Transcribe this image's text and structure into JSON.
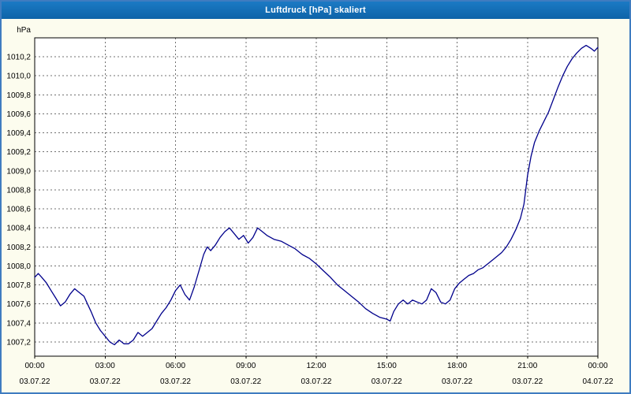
{
  "window": {
    "title": "Luftdruck [hPa] skaliert",
    "colors": {
      "titlebar": "#116bb2",
      "titlebar_text": "#ffffff",
      "background": "#fcfcee",
      "border": "#3f7cc0",
      "plot_background": "#ffffff",
      "grid": "#707070",
      "axis": "#000000",
      "line": "#00008b"
    }
  },
  "chart_data": {
    "type": "line",
    "title": "Luftdruck [hPa] skaliert",
    "unit_label": "hPa",
    "xlabel": "",
    "ylabel": "hPa",
    "xlim": [
      0,
      24
    ],
    "ylim": [
      1007.05,
      1010.4
    ],
    "grid": "dashed",
    "legend": "none",
    "y_ticks": [
      {
        "value": 1007.2,
        "label": "1007,2"
      },
      {
        "value": 1007.4,
        "label": "1007,4"
      },
      {
        "value": 1007.6,
        "label": "1007,6"
      },
      {
        "value": 1007.8,
        "label": "1007,8"
      },
      {
        "value": 1008.0,
        "label": "1008,0"
      },
      {
        "value": 1008.2,
        "label": "1008,2"
      },
      {
        "value": 1008.4,
        "label": "1008,4"
      },
      {
        "value": 1008.6,
        "label": "1008,6"
      },
      {
        "value": 1008.8,
        "label": "1008,8"
      },
      {
        "value": 1009.0,
        "label": "1009,0"
      },
      {
        "value": 1009.2,
        "label": "1009,2"
      },
      {
        "value": 1009.4,
        "label": "1009,4"
      },
      {
        "value": 1009.6,
        "label": "1009,6"
      },
      {
        "value": 1009.8,
        "label": "1009,8"
      },
      {
        "value": 1010.0,
        "label": "1010,0"
      },
      {
        "value": 1010.2,
        "label": "1010,2"
      }
    ],
    "x_ticks": [
      {
        "hour": 0,
        "time": "00:00",
        "date": "03.07.22"
      },
      {
        "hour": 3,
        "time": "03:00",
        "date": "03.07.22"
      },
      {
        "hour": 6,
        "time": "06:00",
        "date": "03.07.22"
      },
      {
        "hour": 9,
        "time": "09:00",
        "date": "03.07.22"
      },
      {
        "hour": 12,
        "time": "12:00",
        "date": "03.07.22"
      },
      {
        "hour": 15,
        "time": "15:00",
        "date": "03.07.22"
      },
      {
        "hour": 18,
        "time": "18:00",
        "date": "03.07.22"
      },
      {
        "hour": 21,
        "time": "21:00",
        "date": "03.07.22"
      },
      {
        "hour": 24,
        "time": "00:00",
        "date": "04.07.22"
      }
    ],
    "series": [
      {
        "name": "Luftdruck",
        "color": "#00008b",
        "points": [
          [
            0.0,
            1007.88
          ],
          [
            0.15,
            1007.92
          ],
          [
            0.3,
            1007.88
          ],
          [
            0.5,
            1007.82
          ],
          [
            0.7,
            1007.74
          ],
          [
            0.9,
            1007.66
          ],
          [
            1.1,
            1007.58
          ],
          [
            1.3,
            1007.62
          ],
          [
            1.5,
            1007.7
          ],
          [
            1.7,
            1007.76
          ],
          [
            1.9,
            1007.72
          ],
          [
            2.1,
            1007.68
          ],
          [
            2.25,
            1007.6
          ],
          [
            2.4,
            1007.52
          ],
          [
            2.6,
            1007.4
          ],
          [
            2.8,
            1007.32
          ],
          [
            3.0,
            1007.26
          ],
          [
            3.2,
            1007.2
          ],
          [
            3.4,
            1007.17
          ],
          [
            3.6,
            1007.22
          ],
          [
            3.8,
            1007.18
          ],
          [
            4.0,
            1007.18
          ],
          [
            4.2,
            1007.22
          ],
          [
            4.4,
            1007.3
          ],
          [
            4.6,
            1007.26
          ],
          [
            4.8,
            1007.3
          ],
          [
            5.0,
            1007.34
          ],
          [
            5.2,
            1007.42
          ],
          [
            5.4,
            1007.5
          ],
          [
            5.6,
            1007.56
          ],
          [
            5.8,
            1007.64
          ],
          [
            6.0,
            1007.74
          ],
          [
            6.2,
            1007.8
          ],
          [
            6.4,
            1007.7
          ],
          [
            6.6,
            1007.64
          ],
          [
            6.8,
            1007.78
          ],
          [
            7.0,
            1007.95
          ],
          [
            7.2,
            1008.12
          ],
          [
            7.35,
            1008.2
          ],
          [
            7.5,
            1008.16
          ],
          [
            7.7,
            1008.22
          ],
          [
            7.9,
            1008.3
          ],
          [
            8.1,
            1008.36
          ],
          [
            8.3,
            1008.4
          ],
          [
            8.5,
            1008.34
          ],
          [
            8.7,
            1008.28
          ],
          [
            8.9,
            1008.32
          ],
          [
            9.1,
            1008.24
          ],
          [
            9.3,
            1008.3
          ],
          [
            9.5,
            1008.4
          ],
          [
            9.7,
            1008.36
          ],
          [
            9.9,
            1008.32
          ],
          [
            10.2,
            1008.28
          ],
          [
            10.5,
            1008.26
          ],
          [
            10.8,
            1008.22
          ],
          [
            11.1,
            1008.18
          ],
          [
            11.4,
            1008.12
          ],
          [
            11.7,
            1008.08
          ],
          [
            12.0,
            1008.02
          ],
          [
            12.3,
            1007.95
          ],
          [
            12.6,
            1007.88
          ],
          [
            12.9,
            1007.8
          ],
          [
            13.2,
            1007.74
          ],
          [
            13.5,
            1007.68
          ],
          [
            13.8,
            1007.62
          ],
          [
            14.1,
            1007.55
          ],
          [
            14.4,
            1007.5
          ],
          [
            14.7,
            1007.46
          ],
          [
            15.0,
            1007.44
          ],
          [
            15.15,
            1007.42
          ],
          [
            15.3,
            1007.52
          ],
          [
            15.5,
            1007.6
          ],
          [
            15.7,
            1007.64
          ],
          [
            15.9,
            1007.6
          ],
          [
            16.1,
            1007.64
          ],
          [
            16.3,
            1007.62
          ],
          [
            16.5,
            1007.6
          ],
          [
            16.7,
            1007.64
          ],
          [
            16.9,
            1007.76
          ],
          [
            17.1,
            1007.72
          ],
          [
            17.3,
            1007.62
          ],
          [
            17.5,
            1007.6
          ],
          [
            17.7,
            1007.64
          ],
          [
            17.9,
            1007.76
          ],
          [
            18.1,
            1007.82
          ],
          [
            18.3,
            1007.86
          ],
          [
            18.5,
            1007.9
          ],
          [
            18.7,
            1007.92
          ],
          [
            18.9,
            1007.96
          ],
          [
            19.1,
            1007.98
          ],
          [
            19.3,
            1008.02
          ],
          [
            19.5,
            1008.06
          ],
          [
            19.7,
            1008.1
          ],
          [
            19.9,
            1008.14
          ],
          [
            20.1,
            1008.2
          ],
          [
            20.3,
            1008.28
          ],
          [
            20.5,
            1008.38
          ],
          [
            20.7,
            1008.5
          ],
          [
            20.85,
            1008.65
          ],
          [
            21.0,
            1008.95
          ],
          [
            21.15,
            1009.15
          ],
          [
            21.3,
            1009.3
          ],
          [
            21.5,
            1009.42
          ],
          [
            21.7,
            1009.52
          ],
          [
            21.9,
            1009.62
          ],
          [
            22.1,
            1009.75
          ],
          [
            22.3,
            1009.88
          ],
          [
            22.5,
            1010.0
          ],
          [
            22.7,
            1010.1
          ],
          [
            22.9,
            1010.18
          ],
          [
            23.1,
            1010.24
          ],
          [
            23.3,
            1010.29
          ],
          [
            23.5,
            1010.32
          ],
          [
            23.7,
            1010.29
          ],
          [
            23.85,
            1010.26
          ],
          [
            24.0,
            1010.3
          ]
        ]
      }
    ]
  }
}
